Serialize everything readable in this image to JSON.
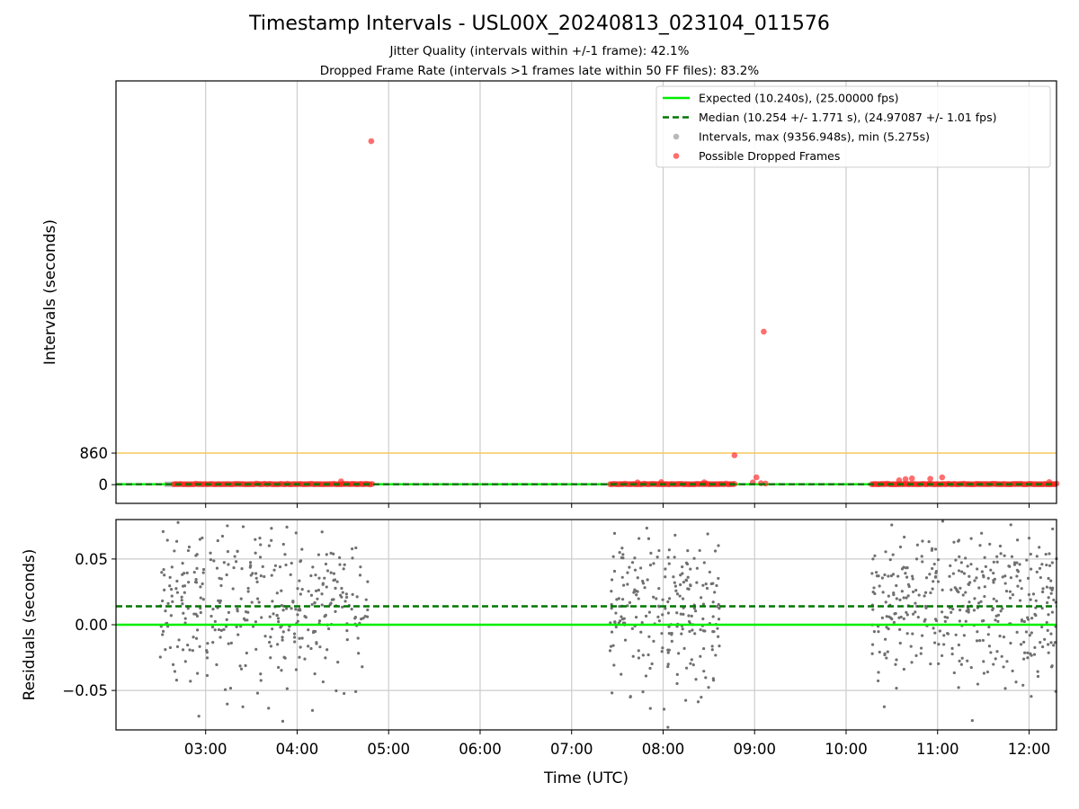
{
  "header": {
    "title": "Timestamp Intervals - USL00X_20240813_023104_011576",
    "subtitle1": "Jitter Quality (intervals within +/-1 frame): 42.1%",
    "subtitle2": "Dropped Frame Rate (intervals >1 frames late within 50 FF files): 83.2%"
  },
  "colors": {
    "expected": "#00ee00",
    "median": "#007700",
    "intervals": "#808080",
    "dropped": "#ff2020",
    "threshold": "#f5c85a",
    "grid": "#cccccc",
    "residuals": "#707070"
  },
  "chart_data": [
    {
      "type": "scatter",
      "xlabel": "",
      "ylabel": "Intervals (seconds)",
      "x_unit": "hours UTC",
      "xlim": [
        2.02,
        12.3
      ],
      "ylim": [
        -510,
        11000
      ],
      "grid": "vertical",
      "legend_position": "top-right",
      "yticks": [
        {
          "value": 0,
          "label": "0"
        },
        {
          "value": 860,
          "label": "860"
        }
      ],
      "hlines": [
        {
          "name": "Expected (10.240s), (25.00000 fps)",
          "y": 10.24,
          "style": "solid",
          "color": "#00ee00"
        },
        {
          "name": "Median (10.254 +/- 1.771 s), (24.97087 +/- 1.01 fps)",
          "y": 10.254,
          "style": "dashed",
          "color": "#007700"
        },
        {
          "name": "",
          "y": 860,
          "style": "solid",
          "color": "#f5c85a"
        }
      ],
      "series": [
        {
          "name": "Intervals, max (9356.948s), min (5.275s)",
          "color": "#808080",
          "segments": [
            [
              2.55,
              4.82
            ],
            [
              7.42,
              8.78
            ],
            [
              10.28,
              12.3
            ]
          ],
          "approx_value": 10.24
        },
        {
          "name": "Possible Dropped Frames",
          "color": "#ff2020",
          "clusters": [
            {
              "x0": 2.65,
              "x1": 4.82,
              "n": 90
            },
            {
              "x0": 7.42,
              "x1": 8.78,
              "n": 60
            },
            {
              "x0": 10.28,
              "x1": 12.3,
              "n": 95
            }
          ],
          "notable_points": [
            {
              "x": 4.81,
              "y": 9357
            },
            {
              "x": 9.1,
              "y": 4170
            },
            {
              "x": 8.78,
              "y": 800
            },
            {
              "x": 9.02,
              "y": 200
            },
            {
              "x": 8.98,
              "y": 60
            },
            {
              "x": 9.07,
              "y": 40
            },
            {
              "x": 9.12,
              "y": 30
            },
            {
              "x": 10.58,
              "y": 120
            },
            {
              "x": 10.65,
              "y": 150
            },
            {
              "x": 10.72,
              "y": 170
            },
            {
              "x": 10.92,
              "y": 160
            },
            {
              "x": 11.05,
              "y": 200
            },
            {
              "x": 4.48,
              "y": 90
            },
            {
              "x": 7.72,
              "y": 60
            },
            {
              "x": 7.98,
              "y": 70
            },
            {
              "x": 8.45,
              "y": 65
            },
            {
              "x": 12.22,
              "y": 70
            }
          ]
        }
      ]
    },
    {
      "type": "scatter",
      "xlabel": "Time (UTC)",
      "ylabel": "Residuals (seconds)",
      "xlim": [
        2.02,
        12.3
      ],
      "ylim": [
        -0.08,
        0.08
      ],
      "grid": "both",
      "xticks": [
        {
          "value": 3,
          "label": "03:00"
        },
        {
          "value": 4,
          "label": "04:00"
        },
        {
          "value": 5,
          "label": "05:00"
        },
        {
          "value": 6,
          "label": "06:00"
        },
        {
          "value": 7,
          "label": "07:00"
        },
        {
          "value": 8,
          "label": "08:00"
        },
        {
          "value": 9,
          "label": "09:00"
        },
        {
          "value": 10,
          "label": "10:00"
        },
        {
          "value": 11,
          "label": "11:00"
        },
        {
          "value": 12,
          "label": "12:00"
        }
      ],
      "yticks": [
        {
          "value": 0.05,
          "label": "0.05"
        },
        {
          "value": 0.0,
          "label": "0.00"
        },
        {
          "value": -0.05,
          "label": "−0.05"
        }
      ],
      "hlines": [
        {
          "name": "expected",
          "y": 0.0,
          "style": "solid",
          "color": "#00ee00"
        },
        {
          "name": "median",
          "y": 0.014,
          "style": "dashed",
          "color": "#007700"
        }
      ],
      "series": [
        {
          "name": "residuals",
          "color": "#707070",
          "clusters": [
            {
              "x0": 2.5,
              "x1": 4.78,
              "n": 360
            },
            {
              "x0": 7.42,
              "x1": 8.62,
              "n": 230
            },
            {
              "x0": 10.28,
              "x1": 12.3,
              "n": 380
            }
          ],
          "range": [
            -0.08,
            0.08
          ]
        }
      ]
    }
  ]
}
